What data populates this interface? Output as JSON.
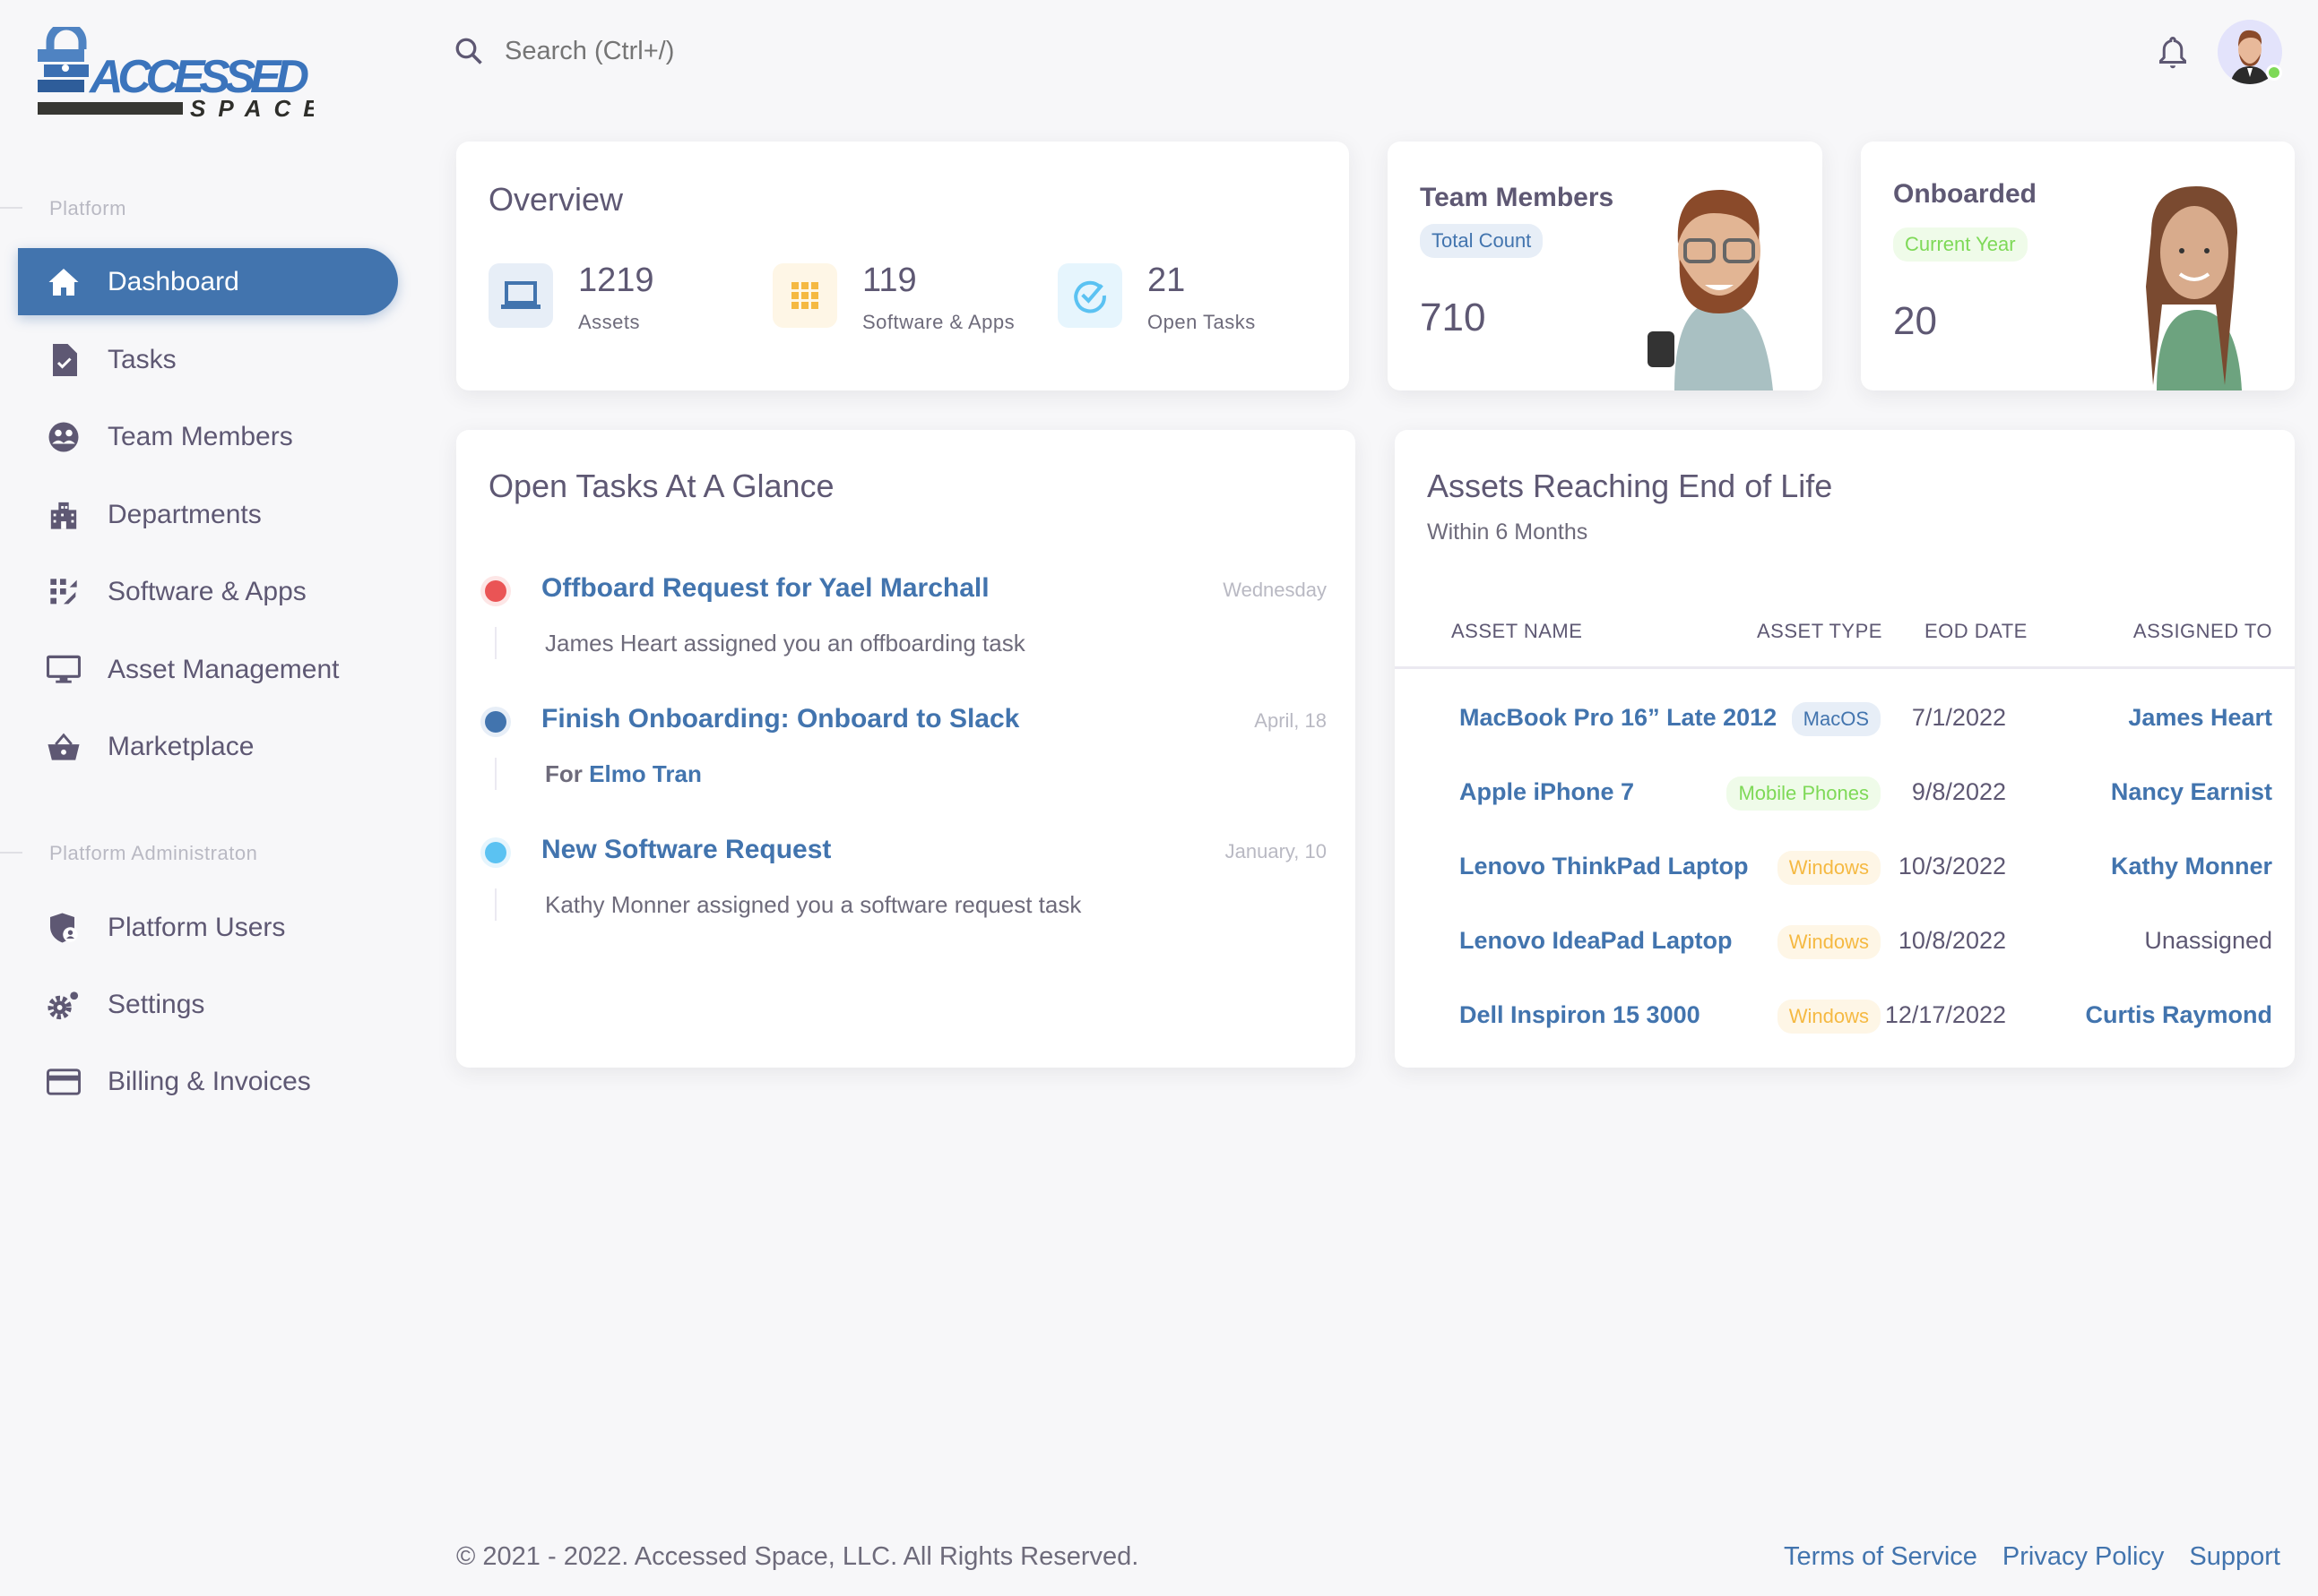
{
  "brand": {
    "name": "ACCESSED",
    "sub": "SPACE",
    "primary": "#4274ae"
  },
  "search": {
    "placeholder": "Search (Ctrl+/)",
    "icon": "search-icon"
  },
  "header": {
    "notification_icon": "bell-icon",
    "status": "online",
    "status_color": "#7ed957"
  },
  "sidebar": {
    "section1": "Platform",
    "items": [
      {
        "label": "Dashboard",
        "icon": "home-icon",
        "active": true
      },
      {
        "label": "Tasks",
        "icon": "task-file-icon"
      },
      {
        "label": "Team Members",
        "icon": "team-icon"
      },
      {
        "label": "Departments",
        "icon": "building-icon"
      },
      {
        "label": "Software & Apps",
        "icon": "apps-icon"
      },
      {
        "label": "Asset Management",
        "icon": "monitor-icon"
      },
      {
        "label": "Marketplace",
        "icon": "basket-icon"
      }
    ],
    "section2": "Platform Administraton",
    "admin_items": [
      {
        "label": "Platform Users",
        "icon": "shield-user-icon"
      },
      {
        "label": "Settings",
        "icon": "gear-icon"
      },
      {
        "label": "Billing & Invoices",
        "icon": "credit-card-icon"
      }
    ]
  },
  "overview": {
    "title": "Overview",
    "stats": [
      {
        "value": "1219",
        "label": "Assets",
        "icon": "laptop-icon",
        "color": "#4274ae"
      },
      {
        "value": "119",
        "label": "Software & Apps",
        "icon": "grid-icon",
        "color": "#f5b942"
      },
      {
        "value": "21",
        "label": "Open Tasks",
        "icon": "check-circle-icon",
        "color": "#5bc2f2"
      }
    ]
  },
  "team_card": {
    "title": "Team Members",
    "badge": "Total Count",
    "value": "710"
  },
  "onboarded_card": {
    "title": "Onboarded",
    "badge": "Current Year",
    "value": "20"
  },
  "tasks": {
    "title": "Open Tasks At A Glance",
    "items": [
      {
        "title": "Offboard Request for Yael Marchall",
        "date": "Wednesday",
        "desc": "James Heart assigned you an offboarding task",
        "color": "#ea5455"
      },
      {
        "title": "Finish Onboarding: Onboard to Slack",
        "date": "April, 18",
        "desc_prefix": "For",
        "desc_link": "Elmo Tran",
        "color": "#4274ae"
      },
      {
        "title": "New Software Request",
        "date": "January, 10",
        "desc": "Kathy Monner assigned you a software request task",
        "color": "#5bc2f2"
      }
    ]
  },
  "assets": {
    "title": "Assets Reaching End of Life",
    "subtitle": "Within 6 Months",
    "columns": [
      "ASSET NAME",
      "ASSET TYPE",
      "EOD DATE",
      "ASSIGNED TO"
    ],
    "rows": [
      {
        "name": "MacBook Pro 16” Late 2012",
        "type": "MacOS",
        "eod": "7/1/2022",
        "assigned": "James Heart"
      },
      {
        "name": "Apple iPhone 7",
        "type": "Mobile Phones",
        "eod": "9/8/2022",
        "assigned": "Nancy Earnist"
      },
      {
        "name": "Lenovo ThinkPad Laptop",
        "type": "Windows",
        "eod": "10/3/2022",
        "assigned": "Kathy Monner"
      },
      {
        "name": "Lenovo IdeaPad Laptop",
        "type": "Windows",
        "eod": "10/8/2022",
        "assigned": "Unassigned"
      },
      {
        "name": "Dell Inspiron 15 3000",
        "type": "Windows",
        "eod": "12/17/2022",
        "assigned": "Curtis Raymond"
      }
    ]
  },
  "footer": {
    "copyright": "© 2021 - 2022. Accessed Space, LLC. All Rights Reserved.",
    "links": [
      "Terms of Service",
      "Privacy Policy",
      "Support"
    ]
  }
}
